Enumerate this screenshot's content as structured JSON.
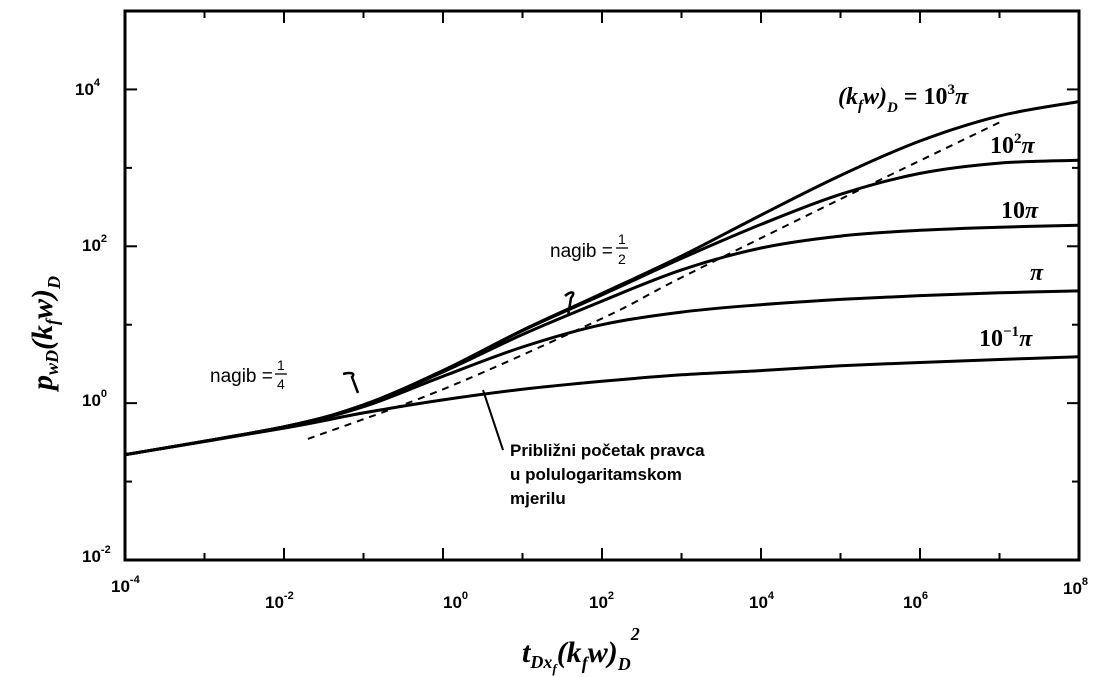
{
  "chart_data": {
    "type": "line",
    "xscale": "log",
    "yscale": "log",
    "xlim": [
      0.0001,
      100000000
    ],
    "ylim": [
      0.01,
      100000
    ],
    "grid": false,
    "xticks": [
      {
        "base": "10",
        "exp": "-4"
      },
      {
        "base": "10",
        "exp": "-2"
      },
      {
        "base": "10",
        "exp": "0"
      },
      {
        "base": "10",
        "exp": "2"
      },
      {
        "base": "10",
        "exp": "4"
      },
      {
        "base": "10",
        "exp": "6"
      },
      {
        "base": "10",
        "exp": "8"
      }
    ],
    "yticks": [
      {
        "base": "10",
        "exp": "-2"
      },
      {
        "base": "10",
        "exp": "0"
      },
      {
        "base": "10",
        "exp": "2"
      },
      {
        "base": "10",
        "exp": "4"
      }
    ],
    "xlabel": {
      "main": "t",
      "sub": "Dx",
      "subsub": "f",
      "rest": "(k",
      "rest_sub": "f",
      "rest2": "w)",
      "rest2_sub": "D",
      "sup": "2"
    },
    "ylabel": {
      "main": "p",
      "sub": "wD",
      "rest": "(k",
      "rest_sub": "f",
      "rest2": "w)",
      "rest2_sub": "D"
    },
    "series": [
      {
        "name": "(k_f w)_D = 10^3 π",
        "label_parts": {
          "prefix": "(k",
          "prefix_sub": "f",
          "mid": "w)",
          "mid_sub": "D",
          "eq": " =  10",
          "sup": "3",
          "tail": "π"
        },
        "x": [
          0.0001,
          0.01,
          0.1,
          1,
          10,
          100,
          1000,
          10000,
          100000,
          1000000,
          10000000,
          100000000
        ],
        "y": [
          0.22,
          0.5,
          0.95,
          2.6,
          8.5,
          25,
          75,
          250,
          800,
          2200,
          4600,
          7000
        ]
      },
      {
        "name": "10^2 π",
        "label_parts": {
          "eq": "10",
          "sup": "2",
          "tail": "π"
        },
        "x": [
          0.0001,
          0.01,
          0.1,
          1,
          10,
          100,
          1000,
          10000,
          100000,
          1000000,
          10000000,
          100000000
        ],
        "y": [
          0.22,
          0.5,
          0.95,
          2.6,
          8.4,
          24,
          70,
          190,
          460,
          850,
          1150,
          1250
        ]
      },
      {
        "name": "10π",
        "label_parts": {
          "eq": "10",
          "sup": "",
          "tail": "π"
        },
        "x": [
          0.0001,
          0.01,
          0.1,
          1,
          10,
          100,
          1000,
          10000,
          100000,
          1000000,
          10000000,
          100000000
        ],
        "y": [
          0.22,
          0.5,
          0.95,
          2.5,
          7.5,
          20,
          50,
          95,
          135,
          160,
          175,
          185
        ]
      },
      {
        "name": "π",
        "label_parts": {
          "eq": "",
          "sup": "",
          "tail": "π"
        },
        "x": [
          0.0001,
          0.01,
          0.1,
          1,
          10,
          100,
          1000,
          10000,
          100000,
          1000000,
          10000000,
          100000000
        ],
        "y": [
          0.22,
          0.5,
          0.9,
          2.2,
          5.2,
          10,
          14.5,
          18,
          21,
          23.5,
          25.5,
          27
        ]
      },
      {
        "name": "10^-1 π",
        "label_parts": {
          "eq": "10",
          "sup": "−1",
          "tail": "π"
        },
        "x": [
          0.0001,
          0.01,
          0.1,
          1,
          10,
          100,
          1000,
          10000,
          100000,
          1000000,
          10000000,
          100000000
        ],
        "y": [
          0.22,
          0.48,
          0.75,
          1.1,
          1.5,
          1.9,
          2.3,
          2.6,
          3.0,
          3.3,
          3.6,
          3.9
        ]
      }
    ],
    "dashed_line": {
      "x": [
        0.02,
        1,
        100,
        1000,
        100000,
        10000000
      ],
      "y": [
        0.35,
        1.5,
        12,
        40,
        400,
        3800
      ]
    },
    "annotations": [
      {
        "text": "nagib = ",
        "num": "1",
        "den": "4"
      },
      {
        "text": "nagib = ",
        "num": "1",
        "den": "2"
      },
      {
        "text": "Približni početak pravca",
        "line2": "u polulogaritamskom",
        "line3": "mjerilu"
      }
    ]
  }
}
